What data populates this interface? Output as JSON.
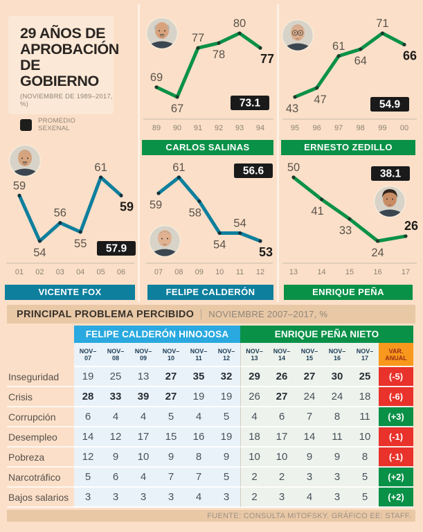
{
  "header": {
    "title_lines": [
      "29 AÑOS DE",
      "APROBACIÓN",
      "DE GOBIERNO"
    ],
    "subtitle": "(NOVIEMBRE DE 1989–2017, %)",
    "legend": {
      "label_lines": [
        "PROMEDIO",
        "SEXENAL"
      ],
      "swatch_color": "#1d1d1b"
    }
  },
  "colors": {
    "background": "#fbdfc8",
    "green": "#0a9148",
    "teal": "#0e7f9d",
    "table_blue": "#29a9df",
    "badge_black": "#1a1a1a",
    "var_red": "#e8322b",
    "var_orange": "#f8981d",
    "band_tan": "#e9c8a6"
  },
  "chart_data": [
    {
      "type": "line",
      "president": "CARLOS SALINAS",
      "color": "#0a9148",
      "x": [
        "89",
        "90",
        "91",
        "92",
        "93",
        "94"
      ],
      "values": [
        69,
        67,
        77,
        78,
        80,
        77
      ],
      "avg": "73.1",
      "ylim": [
        67,
        80
      ],
      "grid": false
    },
    {
      "type": "line",
      "president": "ERNESTO ZEDILLO",
      "color": "#0a9148",
      "x": [
        "95",
        "96",
        "97",
        "98",
        "99",
        "00"
      ],
      "values": [
        43,
        47,
        61,
        64,
        71,
        66
      ],
      "avg": "54.9",
      "ylim": [
        43,
        71
      ],
      "grid": false
    },
    {
      "type": "line",
      "president": "VICENTE FOX",
      "color": "#0e7f9d",
      "x": [
        "01",
        "02",
        "03",
        "04",
        "05",
        "06"
      ],
      "values": [
        59,
        54,
        56,
        55,
        61,
        59
      ],
      "avg": "57.9",
      "ylim": [
        54,
        61
      ],
      "grid": false
    },
    {
      "type": "line",
      "president": "FELIPE CALDERÓN",
      "color": "#0e7f9d",
      "x": [
        "07",
        "08",
        "09",
        "10",
        "11",
        "12"
      ],
      "values": [
        59,
        61,
        58,
        54,
        54,
        53
      ],
      "avg": "56.6",
      "ylim": [
        53,
        61
      ],
      "grid": false
    },
    {
      "type": "line",
      "president": "ENRIQUE PEÑA",
      "color": "#0a9148",
      "x": [
        "13",
        "14",
        "15",
        "16",
        "17"
      ],
      "values": [
        50,
        41,
        33,
        24,
        26
      ],
      "avg": "38.1",
      "ylim": [
        24,
        50
      ],
      "grid": false
    }
  ],
  "problems_table": {
    "title": "PRINCIPAL PROBLEMA PERCIBIDO",
    "period": "NOVIEMBRE 2007–2017, %",
    "col_prefix": "NOV–",
    "col_years": [
      "07",
      "08",
      "09",
      "10",
      "11",
      "12",
      "13",
      "14",
      "15",
      "16",
      "17"
    ],
    "var_header_lines": [
      "VAR.",
      "ANUAL"
    ],
    "groups": [
      {
        "label": "FELIPE CALDERÓN HINOJOSA",
        "color": "#29a9df",
        "span": 6
      },
      {
        "label": "ENRIQUE PEÑA NIETO",
        "color": "#0a9148",
        "span": 5
      }
    ],
    "rows": [
      {
        "label": "Inseguridad",
        "values": [
          19,
          25,
          13,
          27,
          35,
          32,
          29,
          26,
          27,
          30,
          25
        ],
        "bold": [
          0,
          0,
          0,
          1,
          1,
          1,
          1,
          1,
          1,
          1,
          1
        ],
        "var": "(-5)",
        "var_dir": "neg"
      },
      {
        "label": "Crisis",
        "values": [
          28,
          33,
          39,
          27,
          19,
          19,
          26,
          27,
          24,
          24,
          18
        ],
        "bold": [
          1,
          1,
          1,
          1,
          0,
          0,
          0,
          1,
          0,
          0,
          0
        ],
        "var": "(-6)",
        "var_dir": "neg"
      },
      {
        "label": "Corrupción",
        "values": [
          6,
          4,
          4,
          5,
          4,
          5,
          4,
          6,
          7,
          8,
          11
        ],
        "bold": [
          0,
          0,
          0,
          0,
          0,
          0,
          0,
          0,
          0,
          0,
          0
        ],
        "var": "(+3)",
        "var_dir": "pos"
      },
      {
        "label": "Desempleo",
        "values": [
          14,
          12,
          17,
          15,
          16,
          19,
          18,
          17,
          14,
          11,
          10
        ],
        "bold": [
          0,
          0,
          0,
          0,
          0,
          0,
          0,
          0,
          0,
          0,
          0
        ],
        "var": "(-1)",
        "var_dir": "neg"
      },
      {
        "label": "Pobreza",
        "values": [
          12,
          9,
          10,
          9,
          8,
          9,
          10,
          10,
          9,
          9,
          8
        ],
        "bold": [
          0,
          0,
          0,
          0,
          0,
          0,
          0,
          0,
          0,
          0,
          0
        ],
        "var": "(-1)",
        "var_dir": "neg"
      },
      {
        "label": "Narcotráfico",
        "values": [
          5,
          6,
          4,
          7,
          7,
          5,
          2,
          2,
          3,
          3,
          5
        ],
        "bold": [
          0,
          0,
          0,
          0,
          0,
          0,
          0,
          0,
          0,
          0,
          0
        ],
        "var": "(+2)",
        "var_dir": "pos"
      },
      {
        "label": "Bajos salarios",
        "values": [
          3,
          3,
          3,
          3,
          4,
          3,
          2,
          3,
          4,
          3,
          5
        ],
        "bold": [
          0,
          0,
          0,
          0,
          0,
          0,
          0,
          0,
          0,
          0,
          0
        ],
        "var": "(+2)",
        "var_dir": "pos"
      }
    ]
  },
  "source": "FUENTE: CONSULTA MITOFSKY. GRÁFICO EE: STAFF."
}
